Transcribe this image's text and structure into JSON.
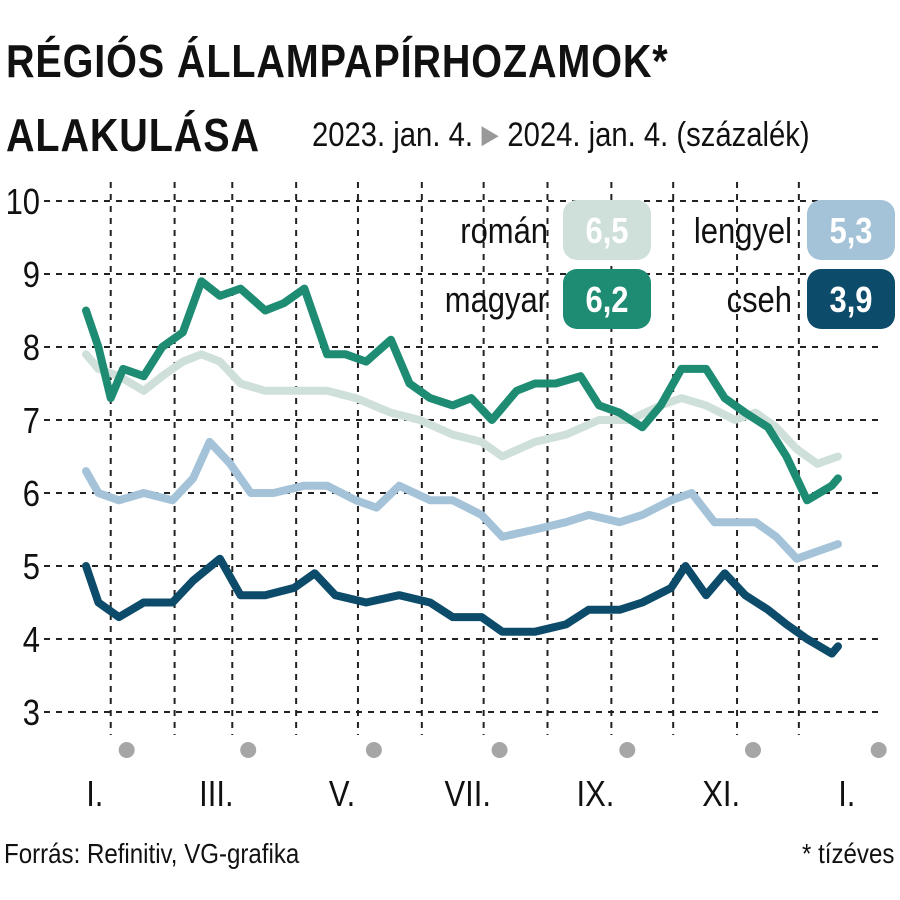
{
  "header": {
    "title_line1": "RÉGIÓS ÁLLAMPAPÍRHOZAMOK*",
    "title_line2": "ALAKULÁSA",
    "date_start": "2023. jan. 4.",
    "date_end": "2024. jan. 4. (százalék)"
  },
  "footer": {
    "source": "Forrás: Refinitiv, VG-grafika",
    "note": "* tízéves"
  },
  "chart_data": {
    "type": "line",
    "ylim": [
      3,
      10
    ],
    "y_ticks": [
      "3",
      "4",
      "5",
      "6",
      "7",
      "8",
      "9",
      "10"
    ],
    "x_range": [
      "2023-01-04",
      "2024-01-04"
    ],
    "x_tick_labels": [
      "I.",
      "III.",
      "V.",
      "VII.",
      "IX.",
      "XI.",
      "I."
    ],
    "grid": true,
    "legend_position": "top-right",
    "series": [
      {
        "name": "román",
        "last_value": "6,5",
        "color": "#cfe0da",
        "points": [
          [
            "2023-01-04",
            7.9
          ],
          [
            "2023-01-10",
            7.7
          ],
          [
            "2023-01-20",
            7.6
          ],
          [
            "2023-02-01",
            7.4
          ],
          [
            "2023-02-10",
            7.6
          ],
          [
            "2023-02-20",
            7.8
          ],
          [
            "2023-03-01",
            7.9
          ],
          [
            "2023-03-10",
            7.8
          ],
          [
            "2023-03-20",
            7.5
          ],
          [
            "2023-04-01",
            7.4
          ],
          [
            "2023-04-15",
            7.4
          ],
          [
            "2023-05-01",
            7.4
          ],
          [
            "2023-05-15",
            7.3
          ],
          [
            "2023-06-01",
            7.1
          ],
          [
            "2023-06-15",
            7.0
          ],
          [
            "2023-07-01",
            6.8
          ],
          [
            "2023-07-15",
            6.7
          ],
          [
            "2023-07-25",
            6.5
          ],
          [
            "2023-08-10",
            6.7
          ],
          [
            "2023-08-25",
            6.8
          ],
          [
            "2023-09-10",
            7.0
          ],
          [
            "2023-09-25",
            7.0
          ],
          [
            "2023-10-10",
            7.2
          ],
          [
            "2023-10-20",
            7.3
          ],
          [
            "2023-11-01",
            7.2
          ],
          [
            "2023-11-15",
            7.0
          ],
          [
            "2023-11-25",
            7.1
          ],
          [
            "2023-12-05",
            6.9
          ],
          [
            "2023-12-15",
            6.6
          ],
          [
            "2023-12-25",
            6.4
          ],
          [
            "2024-01-04",
            6.5
          ]
        ]
      },
      {
        "name": "magyar",
        "last_value": "6,2",
        "color": "#1e8c73",
        "points": [
          [
            "2023-01-04",
            8.5
          ],
          [
            "2023-01-10",
            8.0
          ],
          [
            "2023-01-16",
            7.3
          ],
          [
            "2023-01-22",
            7.7
          ],
          [
            "2023-02-01",
            7.6
          ],
          [
            "2023-02-10",
            8.0
          ],
          [
            "2023-02-20",
            8.2
          ],
          [
            "2023-03-01",
            8.9
          ],
          [
            "2023-03-10",
            8.7
          ],
          [
            "2023-03-20",
            8.8
          ],
          [
            "2023-04-01",
            8.5
          ],
          [
            "2023-04-10",
            8.6
          ],
          [
            "2023-04-20",
            8.8
          ],
          [
            "2023-05-01",
            7.9
          ],
          [
            "2023-05-10",
            7.9
          ],
          [
            "2023-05-20",
            7.8
          ],
          [
            "2023-06-01",
            8.1
          ],
          [
            "2023-06-10",
            7.5
          ],
          [
            "2023-06-20",
            7.3
          ],
          [
            "2023-07-01",
            7.2
          ],
          [
            "2023-07-10",
            7.3
          ],
          [
            "2023-07-20",
            7.0
          ],
          [
            "2023-08-01",
            7.4
          ],
          [
            "2023-08-10",
            7.5
          ],
          [
            "2023-08-20",
            7.5
          ],
          [
            "2023-09-01",
            7.6
          ],
          [
            "2023-09-10",
            7.2
          ],
          [
            "2023-09-20",
            7.1
          ],
          [
            "2023-10-01",
            6.9
          ],
          [
            "2023-10-10",
            7.2
          ],
          [
            "2023-10-20",
            7.7
          ],
          [
            "2023-11-01",
            7.7
          ],
          [
            "2023-11-10",
            7.3
          ],
          [
            "2023-11-20",
            7.1
          ],
          [
            "2023-12-01",
            6.9
          ],
          [
            "2023-12-10",
            6.5
          ],
          [
            "2023-12-20",
            5.9
          ],
          [
            "2024-01-01",
            6.1
          ],
          [
            "2024-01-04",
            6.2
          ]
        ]
      },
      {
        "name": "lengyel",
        "last_value": "5,3",
        "color": "#a5c3d8",
        "points": [
          [
            "2023-01-04",
            6.3
          ],
          [
            "2023-01-10",
            6.0
          ],
          [
            "2023-01-20",
            5.9
          ],
          [
            "2023-02-01",
            6.0
          ],
          [
            "2023-02-15",
            5.9
          ],
          [
            "2023-02-25",
            6.2
          ],
          [
            "2023-03-05",
            6.7
          ],
          [
            "2023-03-15",
            6.4
          ],
          [
            "2023-03-25",
            6.0
          ],
          [
            "2023-04-05",
            6.0
          ],
          [
            "2023-04-20",
            6.1
          ],
          [
            "2023-05-01",
            6.1
          ],
          [
            "2023-05-15",
            5.9
          ],
          [
            "2023-05-25",
            5.8
          ],
          [
            "2023-06-05",
            6.1
          ],
          [
            "2023-06-20",
            5.9
          ],
          [
            "2023-07-01",
            5.9
          ],
          [
            "2023-07-15",
            5.7
          ],
          [
            "2023-07-25",
            5.4
          ],
          [
            "2023-08-10",
            5.5
          ],
          [
            "2023-08-25",
            5.6
          ],
          [
            "2023-09-05",
            5.7
          ],
          [
            "2023-09-20",
            5.6
          ],
          [
            "2023-10-01",
            5.7
          ],
          [
            "2023-10-15",
            5.9
          ],
          [
            "2023-10-25",
            6.0
          ],
          [
            "2023-11-05",
            5.6
          ],
          [
            "2023-11-15",
            5.6
          ],
          [
            "2023-11-25",
            5.6
          ],
          [
            "2023-12-05",
            5.4
          ],
          [
            "2023-12-15",
            5.1
          ],
          [
            "2023-12-25",
            5.2
          ],
          [
            "2024-01-04",
            5.3
          ]
        ]
      },
      {
        "name": "cseh",
        "last_value": "3,9",
        "color": "#0d4b6b",
        "points": [
          [
            "2023-01-04",
            5.0
          ],
          [
            "2023-01-10",
            4.5
          ],
          [
            "2023-01-20",
            4.3
          ],
          [
            "2023-02-01",
            4.5
          ],
          [
            "2023-02-15",
            4.5
          ],
          [
            "2023-02-25",
            4.8
          ],
          [
            "2023-03-10",
            5.1
          ],
          [
            "2023-03-20",
            4.6
          ],
          [
            "2023-04-01",
            4.6
          ],
          [
            "2023-04-15",
            4.7
          ],
          [
            "2023-04-25",
            4.9
          ],
          [
            "2023-05-05",
            4.6
          ],
          [
            "2023-05-20",
            4.5
          ],
          [
            "2023-06-05",
            4.6
          ],
          [
            "2023-06-20",
            4.5
          ],
          [
            "2023-07-01",
            4.3
          ],
          [
            "2023-07-15",
            4.3
          ],
          [
            "2023-07-25",
            4.1
          ],
          [
            "2023-08-10",
            4.1
          ],
          [
            "2023-08-25",
            4.2
          ],
          [
            "2023-09-05",
            4.4
          ],
          [
            "2023-09-20",
            4.4
          ],
          [
            "2023-10-01",
            4.5
          ],
          [
            "2023-10-15",
            4.7
          ],
          [
            "2023-10-22",
            5.0
          ],
          [
            "2023-11-01",
            4.6
          ],
          [
            "2023-11-10",
            4.9
          ],
          [
            "2023-11-20",
            4.6
          ],
          [
            "2023-12-01",
            4.4
          ],
          [
            "2023-12-10",
            4.2
          ],
          [
            "2023-12-20",
            4.0
          ],
          [
            "2024-01-01",
            3.8
          ],
          [
            "2024-01-04",
            3.9
          ]
        ]
      }
    ]
  }
}
